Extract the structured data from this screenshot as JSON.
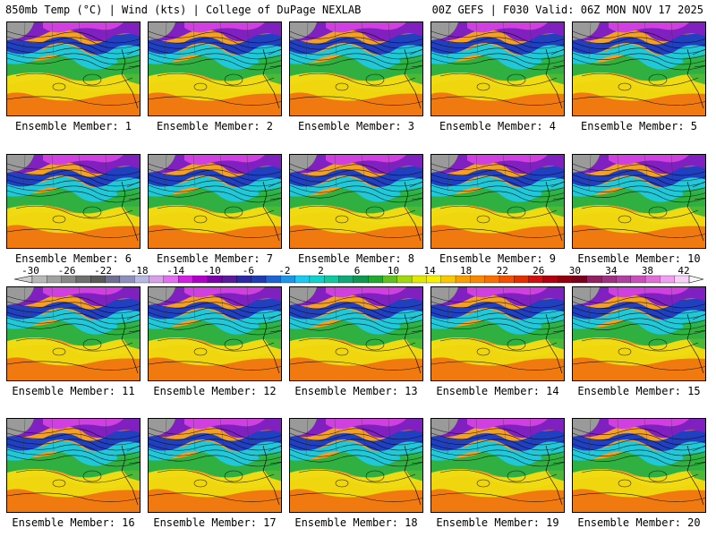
{
  "header": {
    "left_title": "850mb Temp (°C) | Wind (kts) | College of DuPage NEXLAB",
    "right_title": "00Z GEFS | F030 Valid: 06Z MON NOV 17 2025"
  },
  "panel_prefix": "Ensemble Member: ",
  "members": [
    "1",
    "2",
    "3",
    "4",
    "5",
    "6",
    "7",
    "8",
    "9",
    "10",
    "11",
    "12",
    "13",
    "14",
    "15",
    "16",
    "17",
    "18",
    "19",
    "20"
  ],
  "colorbar": {
    "tick_labels": [
      "-30",
      "-26",
      "-22",
      "-18",
      "-14",
      "-10",
      "-6",
      "-2",
      "2",
      "6",
      "10",
      "14",
      "18",
      "22",
      "26",
      "30",
      "34",
      "38",
      "42"
    ],
    "colors": [
      "#b8b8b8",
      "#a0a0a0",
      "#888888",
      "#6e6e6e",
      "#5a5a5a",
      "#6f6f8f",
      "#8f8fbf",
      "#b7b7e3",
      "#d7a0e8",
      "#e070f0",
      "#d020e0",
      "#b000c8",
      "#7a00a8",
      "#5a1a9a",
      "#2a2aa8",
      "#1e3cb4",
      "#1e64d2",
      "#1e96e6",
      "#1ec8f0",
      "#10d2c8",
      "#10c8a0",
      "#10a878",
      "#109850",
      "#20a830",
      "#60c020",
      "#a0d810",
      "#e0e800",
      "#f8f000",
      "#f8c800",
      "#f8a000",
      "#f88800",
      "#f87000",
      "#f05000",
      "#e03000",
      "#d01010",
      "#b00010",
      "#900010",
      "#7a0020",
      "#902060",
      "#a03080",
      "#b040a0",
      "#c850b8",
      "#e070d8",
      "#f0a0f0",
      "#f8d0f8"
    ]
  },
  "map_colors": {
    "warm": "#f5a020",
    "orange": "#f07a10",
    "yellow": "#f0e010",
    "green": "#30b040",
    "cyan": "#20c8d8",
    "blue": "#2040c0",
    "purple": "#8020c0",
    "magenta": "#d040e0",
    "gray": "#9a9a9a"
  }
}
